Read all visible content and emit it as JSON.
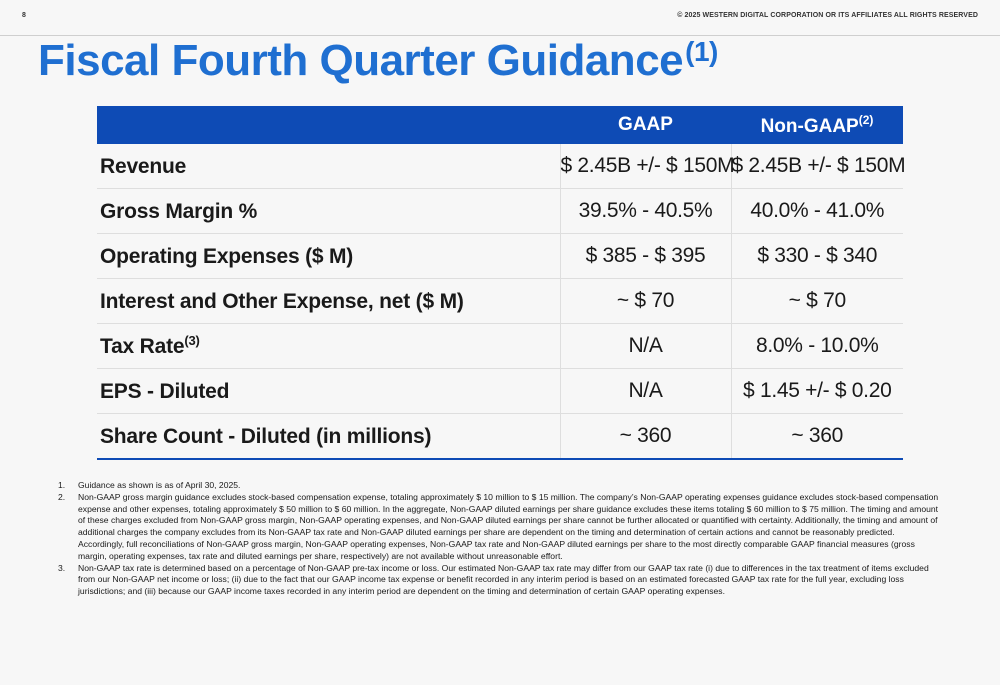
{
  "page_number": "8",
  "copyright": "© 2025 WESTERN DIGITAL CORPORATION OR ITS AFFILIATES  ALL RIGHTS RESERVED",
  "title": {
    "text": "Fiscal Fourth Quarter Guidance",
    "superscript": "(1)"
  },
  "table": {
    "headers": {
      "metric": "",
      "gaap": "GAAP",
      "non_gaap": "Non-GAAP",
      "non_gaap_sup": "(2)"
    },
    "rows": [
      {
        "metric": "Revenue",
        "sup": "",
        "gaap": "$ 2.45B +/- $ 150M",
        "non_gaap": "$ 2.45B +/- $ 150M"
      },
      {
        "metric": "Gross Margin %",
        "sup": "",
        "gaap": "39.5% - 40.5%",
        "non_gaap": "40.0% - 41.0%"
      },
      {
        "metric": "Operating Expenses ($ M)",
        "sup": "",
        "gaap": "$ 385 - $ 395",
        "non_gaap": "$ 330 - $ 340"
      },
      {
        "metric": "Interest and Other Expense, net ($ M)",
        "sup": "",
        "gaap": "~ $ 70",
        "non_gaap": "~ $ 70"
      },
      {
        "metric": "Tax Rate",
        "sup": "(3)",
        "gaap": "N/A",
        "non_gaap": "8.0% - 10.0%"
      },
      {
        "metric": "EPS - Diluted",
        "sup": "",
        "gaap": "N/A",
        "non_gaap": "$ 1.45 +/- $ 0.20"
      },
      {
        "metric": "Share Count - Diluted (in millions)",
        "sup": "",
        "gaap": "~ 360",
        "non_gaap": "~ 360"
      }
    ]
  },
  "footnotes": [
    {
      "num": "1.",
      "text": "Guidance as shown is as of April 30, 2025."
    },
    {
      "num": "2.",
      "text": "Non-GAAP gross margin guidance excludes stock-based compensation expense, totaling approximately $ 10 million to $ 15 million. The company’s Non-GAAP operating expenses guidance excludes stock-based compensation expense and other expenses, totaling approximately $ 50 million to $ 60 million. In the aggregate, Non-GAAP diluted earnings per share guidance excludes these items totaling $ 60 million to $ 75 million. The timing and amount of these charges excluded from Non-GAAP gross margin, Non-GAAP operating expenses, and Non-GAAP diluted earnings per share cannot be further allocated or quantified with certainty. Additionally, the timing and amount of additional charges the company excludes from its Non-GAAP tax rate and Non-GAAP diluted earnings per share are dependent on the timing and determination of certain actions and cannot be reasonably predicted. Accordingly, full reconciliations of Non-GAAP gross margin, Non-GAAP operating expenses, Non-GAAP tax rate and Non-GAAP diluted earnings per share to the most directly comparable GAAP financial measures (gross margin, operating expenses, tax rate and diluted earnings per share, respectively) are not available without unreasonable effort."
    },
    {
      "num": "3.",
      "text": "Non-GAAP tax rate is determined based on a percentage of Non-GAAP pre-tax income or loss. Our estimated Non-GAAP tax rate may differ from our GAAP tax rate (i) due to differences in the tax treatment of items excluded from our Non-GAAP net income or loss; (ii) due to the fact that our GAAP income tax expense or benefit recorded in any interim period is based on an estimated forecasted GAAP tax rate for the full year, excluding loss jurisdictions; and (iii) because our GAAP income taxes recorded in any interim period are dependent on the timing and determination of certain GAAP operating expenses."
    }
  ]
}
